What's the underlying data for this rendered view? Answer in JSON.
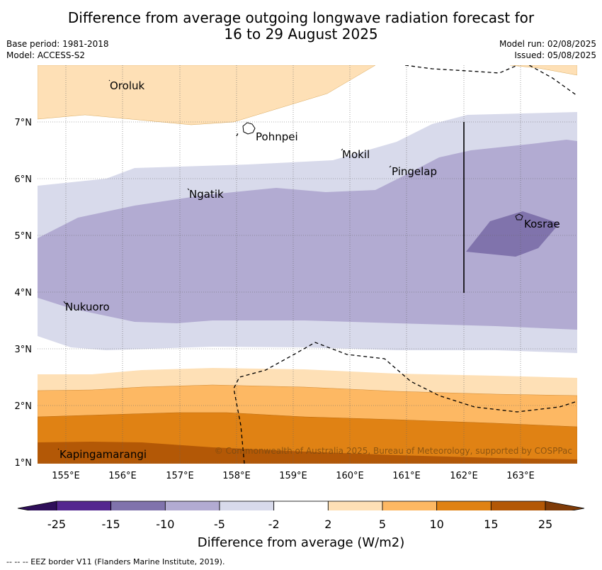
{
  "title_line1": "Difference from average outgoing longwave radiation forecast for",
  "title_line2": "16 to 29 August 2025",
  "meta": {
    "base_period": "Base period: 1981-2018",
    "model": "Model: ACCESS-S2",
    "model_run": "Model run: 02/08/2025",
    "issued": "Issued: 05/08/2025"
  },
  "map": {
    "lat_ticks": [
      "7°N",
      "6°N",
      "5°N",
      "4°N",
      "3°N",
      "2°N",
      "1°N"
    ],
    "lon_ticks": [
      "155°E",
      "156°E",
      "157°E",
      "158°E",
      "159°E",
      "160°E",
      "161°E",
      "162°E",
      "163°E"
    ],
    "places": [
      "Oroluk",
      "Pohnpei",
      "Mokil",
      "Pingelap",
      "Ngatik",
      "Kosrae",
      "Nukuoro",
      "Kapingamarangi"
    ],
    "copyright": "© Commonwealth of Australia 2025, Bureau of Meteorology, supported by COSPPac"
  },
  "colorbar": {
    "labels": [
      "-25",
      "-15",
      "-10",
      "-5",
      "-2",
      "2",
      "5",
      "10",
      "15",
      "25"
    ],
    "colors": [
      "#2f0f5a",
      "#54278f",
      "#8073ac",
      "#b2abd2",
      "#d8daeb",
      "#ffffff",
      "#fee0b6",
      "#fdb863",
      "#e08214",
      "#b35806",
      "#7f3b08"
    ],
    "title": "Difference from average (W/m2)"
  },
  "footnote": "--  --  -- EEZ border V11 (Flanders Marine Institute, 2019)."
}
